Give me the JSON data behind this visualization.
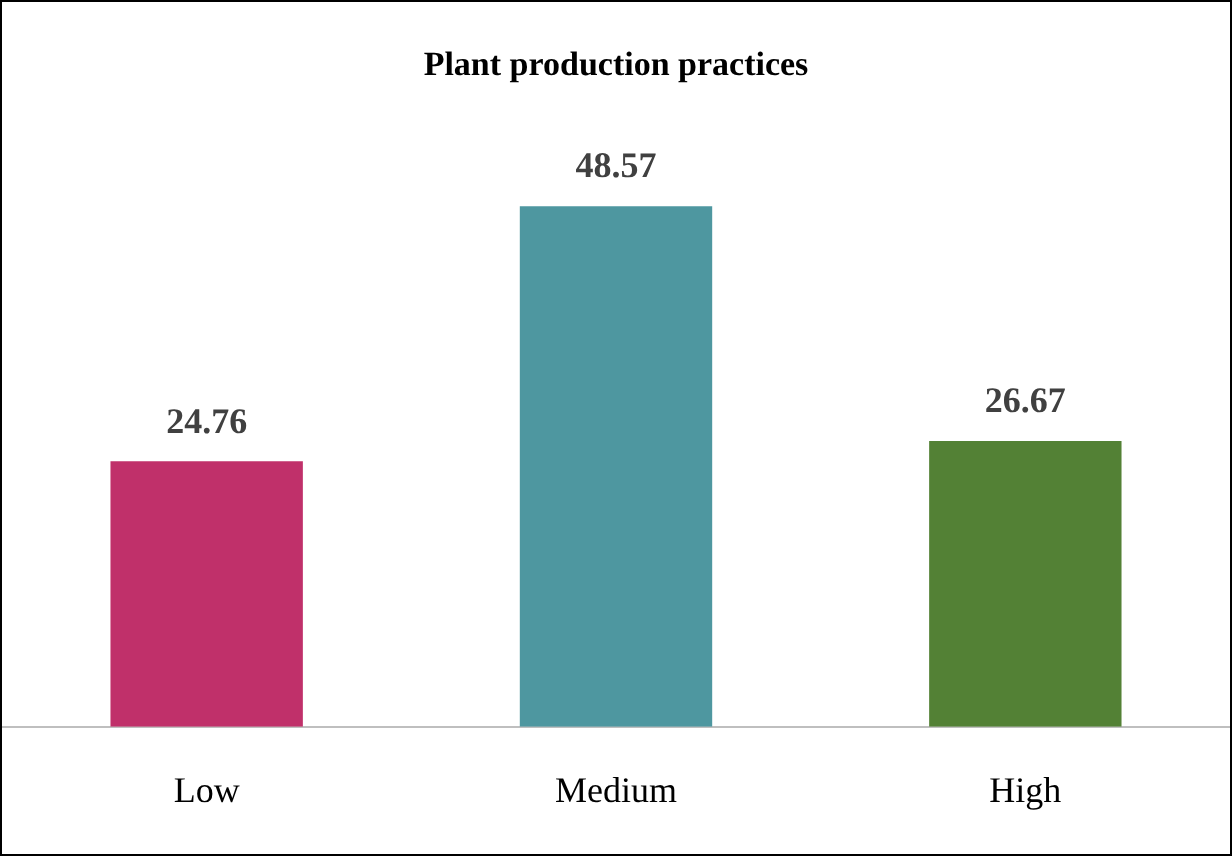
{
  "chart_data": {
    "type": "bar",
    "title": "Plant production practices",
    "categories": [
      "Low",
      "Medium",
      "High"
    ],
    "values": [
      24.76,
      48.57,
      26.67
    ],
    "colors": [
      "#c0306a",
      "#4e97a0",
      "#538135"
    ],
    "data_labels": true
  }
}
